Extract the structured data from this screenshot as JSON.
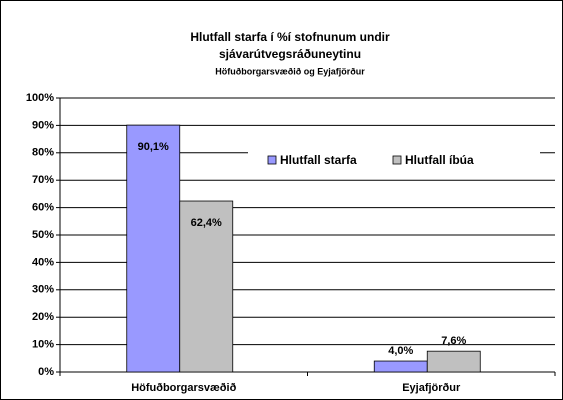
{
  "chart_data": {
    "type": "bar",
    "title_lines": [
      "Hlutfall starfa í %í stofnunum undir",
      "sjávarútvegsráðuneytinu"
    ],
    "subtitle": "Höfuðborgarsvæðið og Eyjafjörður",
    "categories": [
      "Höfuðborgarsvæðið",
      "Eyjafjörður"
    ],
    "series": [
      {
        "name": "Hlutfall starfa",
        "color": "#9999ff",
        "values": [
          90.1,
          4.0
        ],
        "value_labels": [
          "90,1%",
          "4,0%"
        ]
      },
      {
        "name": "Hlutfall íbúa",
        "color": "#c0c0c0",
        "values": [
          62.4,
          7.6
        ],
        "value_labels": [
          "62,4%",
          "7,6%"
        ]
      }
    ],
    "ylim": [
      0,
      100
    ],
    "yticks": [
      {
        "value": 0,
        "label": "0%"
      },
      {
        "value": 10,
        "label": "10%"
      },
      {
        "value": 20,
        "label": "20%"
      },
      {
        "value": 30,
        "label": "30%"
      },
      {
        "value": 40,
        "label": "40%"
      },
      {
        "value": 50,
        "label": "50%"
      },
      {
        "value": 60,
        "label": "60%"
      },
      {
        "value": 70,
        "label": "70%"
      },
      {
        "value": 80,
        "label": "80%"
      },
      {
        "value": 90,
        "label": "90%"
      },
      {
        "value": 100,
        "label": "100%"
      }
    ],
    "grid": true
  }
}
